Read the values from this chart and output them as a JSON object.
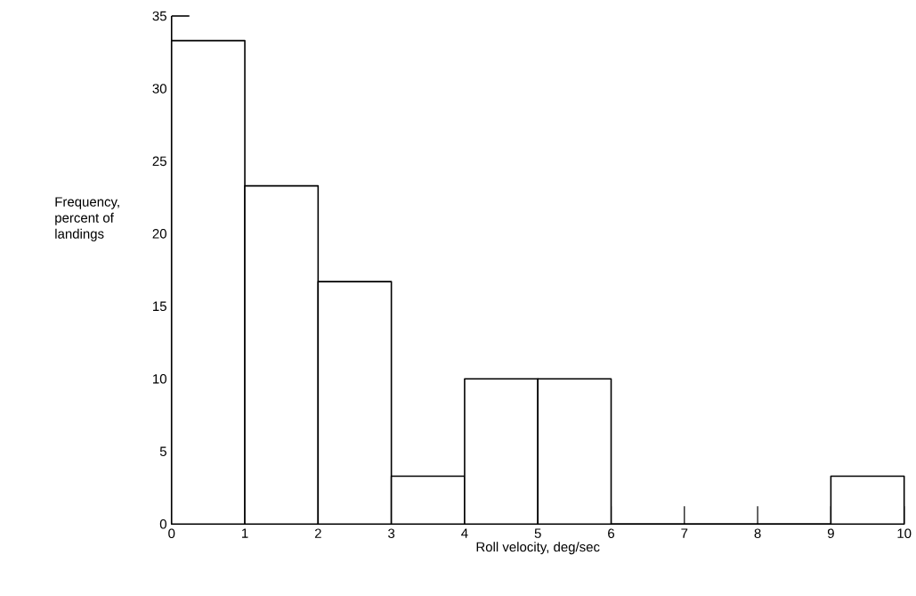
{
  "chart_data": {
    "type": "histogram",
    "xlabel": "Roll velocity, deg/sec",
    "ylabel": "Frequency, percent of landings",
    "bins": [
      0,
      1,
      2,
      3,
      4,
      5,
      6,
      7,
      8,
      9,
      10
    ],
    "values": [
      33.3,
      23.3,
      16.7,
      3.3,
      10,
      10,
      0,
      0,
      0,
      3.3
    ],
    "color": "#000000",
    "xlim": [
      0,
      10
    ],
    "ylim": [
      0,
      35
    ],
    "xticks": [
      0,
      1,
      2,
      3,
      4,
      5,
      6,
      7,
      8,
      9,
      10
    ],
    "yticks": [
      0,
      5,
      10,
      15,
      20,
      25,
      30,
      35
    ]
  }
}
